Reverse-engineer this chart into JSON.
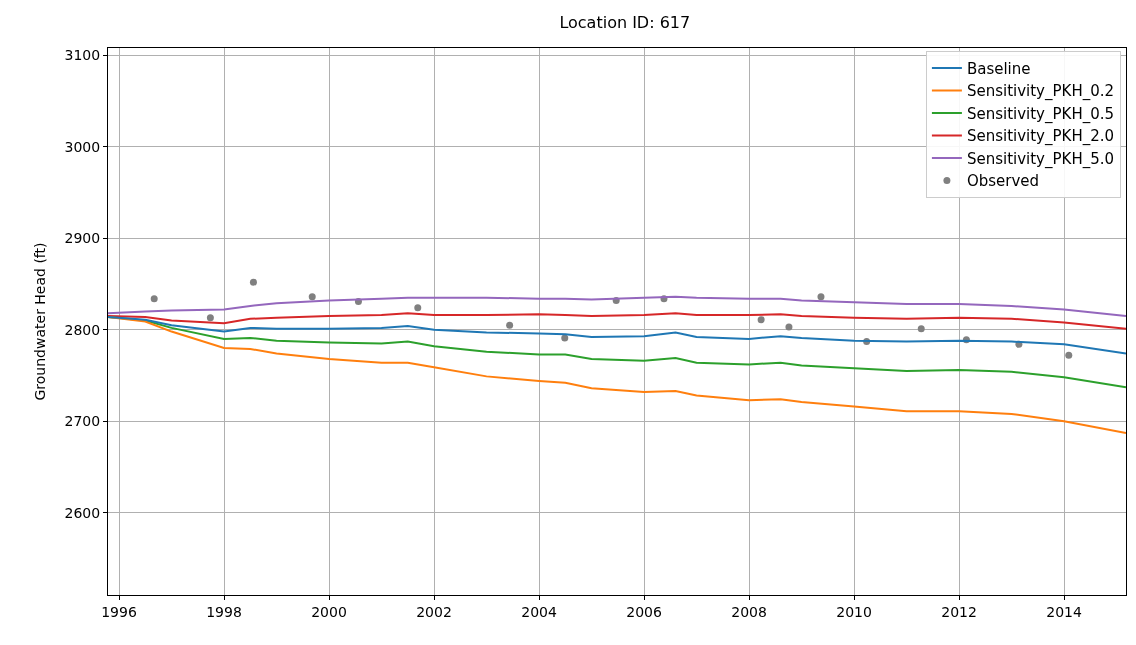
{
  "chart_data": {
    "type": "line",
    "title": "Location ID: 617",
    "ylabel": "Groundwater Head (ft)",
    "xlim": [
      1995.79,
      2015.18
    ],
    "ylim": [
      2510,
      3108
    ],
    "xticks": [
      1996,
      1998,
      2000,
      2002,
      2004,
      2006,
      2008,
      2010,
      2012,
      2014
    ],
    "yticks": [
      2600,
      2700,
      2800,
      2900,
      3000,
      3100
    ],
    "grid": true,
    "legend": "top right",
    "marker": "none",
    "x": [
      1995.79,
      1996.5,
      1997,
      1998,
      1998.5,
      1999,
      2000,
      2001,
      2001.5,
      2002,
      2003,
      2004,
      2004.5,
      2005,
      2006,
      2006.6,
      2007,
      2008,
      2008.6,
      2009,
      2010,
      2011,
      2012,
      2013,
      2014,
      2015.18
    ],
    "series": [
      {
        "name": "Baseline",
        "color": "#1f77b4",
        "values": [
          2814,
          2811,
          2805,
          2798,
          2802,
          2801,
          2801,
          2802,
          2804,
          2800,
          2797,
          2796,
          2795,
          2792,
          2793,
          2797,
          2792,
          2790,
          2793,
          2791,
          2788,
          2787,
          2788,
          2787,
          2784,
          2774
        ]
      },
      {
        "name": "Sensitivity_PKH_0.2",
        "color": "#ff7f0e",
        "values": [
          2814,
          2809,
          2798,
          2780,
          2779,
          2774,
          2768,
          2764,
          2764,
          2759,
          2749,
          2744,
          2742,
          2736,
          2732,
          2733,
          2728,
          2723,
          2724,
          2721,
          2716,
          2711,
          2711,
          2708,
          2700,
          2687
        ]
      },
      {
        "name": "Sensitivity_PKH_0.5",
        "color": "#2ca02c",
        "values": [
          2814,
          2810,
          2802,
          2790,
          2791,
          2788,
          2786,
          2785,
          2787,
          2782,
          2776,
          2773,
          2773,
          2768,
          2766,
          2769,
          2764,
          2762,
          2764,
          2761,
          2758,
          2755,
          2756,
          2754,
          2748,
          2737
        ]
      },
      {
        "name": "Sensitivity_PKH_2.0",
        "color": "#d62728",
        "values": [
          2815,
          2814,
          2810,
          2807,
          2812,
          2813,
          2815,
          2816,
          2818,
          2816,
          2816,
          2817,
          2816,
          2815,
          2816,
          2818,
          2816,
          2816,
          2817,
          2815,
          2813,
          2812,
          2813,
          2812,
          2808,
          2801
        ]
      },
      {
        "name": "Sensitivity_PKH_5.0",
        "color": "#9467bd",
        "values": [
          2818,
          2820,
          2821,
          2822,
          2826,
          2829,
          2832,
          2834,
          2835,
          2835,
          2835,
          2834,
          2834,
          2833,
          2835,
          2836,
          2835,
          2834,
          2834,
          2832,
          2830,
          2828,
          2828,
          2826,
          2822,
          2815
        ]
      },
      {
        "name": "Observed",
        "type": "scatter",
        "marker": "circle",
        "color": "#808080",
        "x": [
          1996.67,
          1997.74,
          1998.56,
          1999.68,
          2000.56,
          2001.69,
          2003.44,
          2004.49,
          2005.47,
          2006.38,
          2008.23,
          2008.76,
          2009.37,
          2010.24,
          2011.28,
          2012.14,
          2013.14,
          2014.09
        ],
        "values": [
          2834,
          2813,
          2852,
          2836,
          2831,
          2824,
          2805,
          2791,
          2832,
          2834,
          2811,
          2803,
          2836,
          2787,
          2801,
          2789,
          2784,
          2772
        ]
      }
    ]
  }
}
